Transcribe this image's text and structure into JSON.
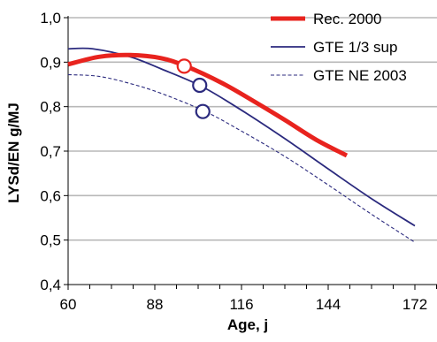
{
  "chart_data": {
    "type": "line",
    "xlabel": "Age, j",
    "ylabel": "LYSd/EN g/MJ",
    "xlim": [
      60,
      180
    ],
    "ylim": [
      0.4,
      1.0
    ],
    "x_ticks": [
      60,
      88,
      116,
      144,
      172
    ],
    "x_tick_labels": [
      "60",
      "88",
      "116",
      "144",
      "172"
    ],
    "y_ticks": [
      0.4,
      0.5,
      0.6,
      0.7,
      0.8,
      0.9,
      1.0
    ],
    "y_tick_labels": [
      "0,4",
      "0,5",
      "0,6",
      "0,7",
      "0,8",
      "0,9",
      "1,0"
    ],
    "grid": "horizontal",
    "legend_position": "top-right",
    "series": [
      {
        "name": "Rec. 2000",
        "color": "#e8231e",
        "style": "thick-solid",
        "x": [
          60,
          70,
          80,
          90,
          98,
          110,
          120,
          130,
          140,
          150
        ],
        "y": [
          0.895,
          0.912,
          0.916,
          0.909,
          0.891,
          0.852,
          0.812,
          0.77,
          0.726,
          0.69
        ]
      },
      {
        "name": "GTE 1/3 sup",
        "color": "#2b2a7e",
        "style": "solid",
        "x": [
          60,
          68,
          80,
          90,
          103,
          116,
          130,
          144,
          158,
          172
        ],
        "y": [
          0.93,
          0.93,
          0.912,
          0.885,
          0.846,
          0.792,
          0.728,
          0.66,
          0.593,
          0.532
        ]
      },
      {
        "name": "GTE NE 2003",
        "color": "#2b2a7e",
        "style": "dashed",
        "x": [
          60,
          70,
          80,
          90,
          104,
          116,
          130,
          144,
          158,
          172
        ],
        "y": [
          0.872,
          0.868,
          0.852,
          0.83,
          0.79,
          0.745,
          0.688,
          0.624,
          0.558,
          0.495
        ]
      }
    ],
    "markers": [
      {
        "series": "Rec. 2000",
        "x": 97.5,
        "y": 0.891,
        "color": "#e8231e"
      },
      {
        "series": "GTE 1/3 sup",
        "x": 102.5,
        "y": 0.848,
        "color": "#2b2a7e"
      },
      {
        "series": "GTE NE 2003",
        "x": 103.5,
        "y": 0.789,
        "color": "#2b2a7e"
      }
    ]
  }
}
